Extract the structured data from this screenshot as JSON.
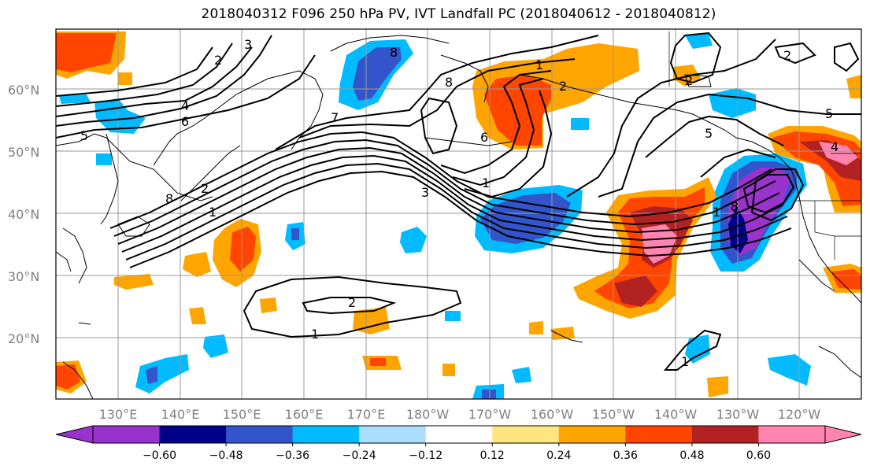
{
  "title": "2018040312 F096 250 hPa PV, IVT Landfall PC (2018040612 - 2018040812)",
  "lat_labels": [
    "60°N",
    "50°N",
    "40°N",
    "30°N",
    "20°N"
  ],
  "lon_labels": [
    "130°E",
    "140°E",
    "150°E",
    "160°E",
    "170°E",
    "180°W",
    "170°W",
    "160°W",
    "150°W",
    "140°W",
    "130°W",
    "120°W"
  ],
  "colorbar": {
    "colors": [
      "#9933cc",
      "#000088",
      "#3355cc",
      "#00bbff",
      "#aaddff",
      "#ffffff",
      "#ffe680",
      "#ffa500",
      "#ff4500",
      "#b22222",
      "#ff85b0"
    ],
    "tick_labels": [
      "-0.60",
      "-0.48",
      "-0.36",
      "-0.24",
      "-0.12",
      "0.12",
      "0.24",
      "0.36",
      "0.48",
      "0.60"
    ]
  },
  "contour_labels": [
    "2",
    "3",
    "4",
    "5",
    "6",
    "7",
    "8",
    "2",
    "2",
    "1",
    "8",
    "2",
    "3",
    "6",
    "5",
    "1",
    "8",
    "2",
    "1",
    "1",
    "2",
    "1",
    "4",
    "5",
    "1",
    "8"
  ]
}
